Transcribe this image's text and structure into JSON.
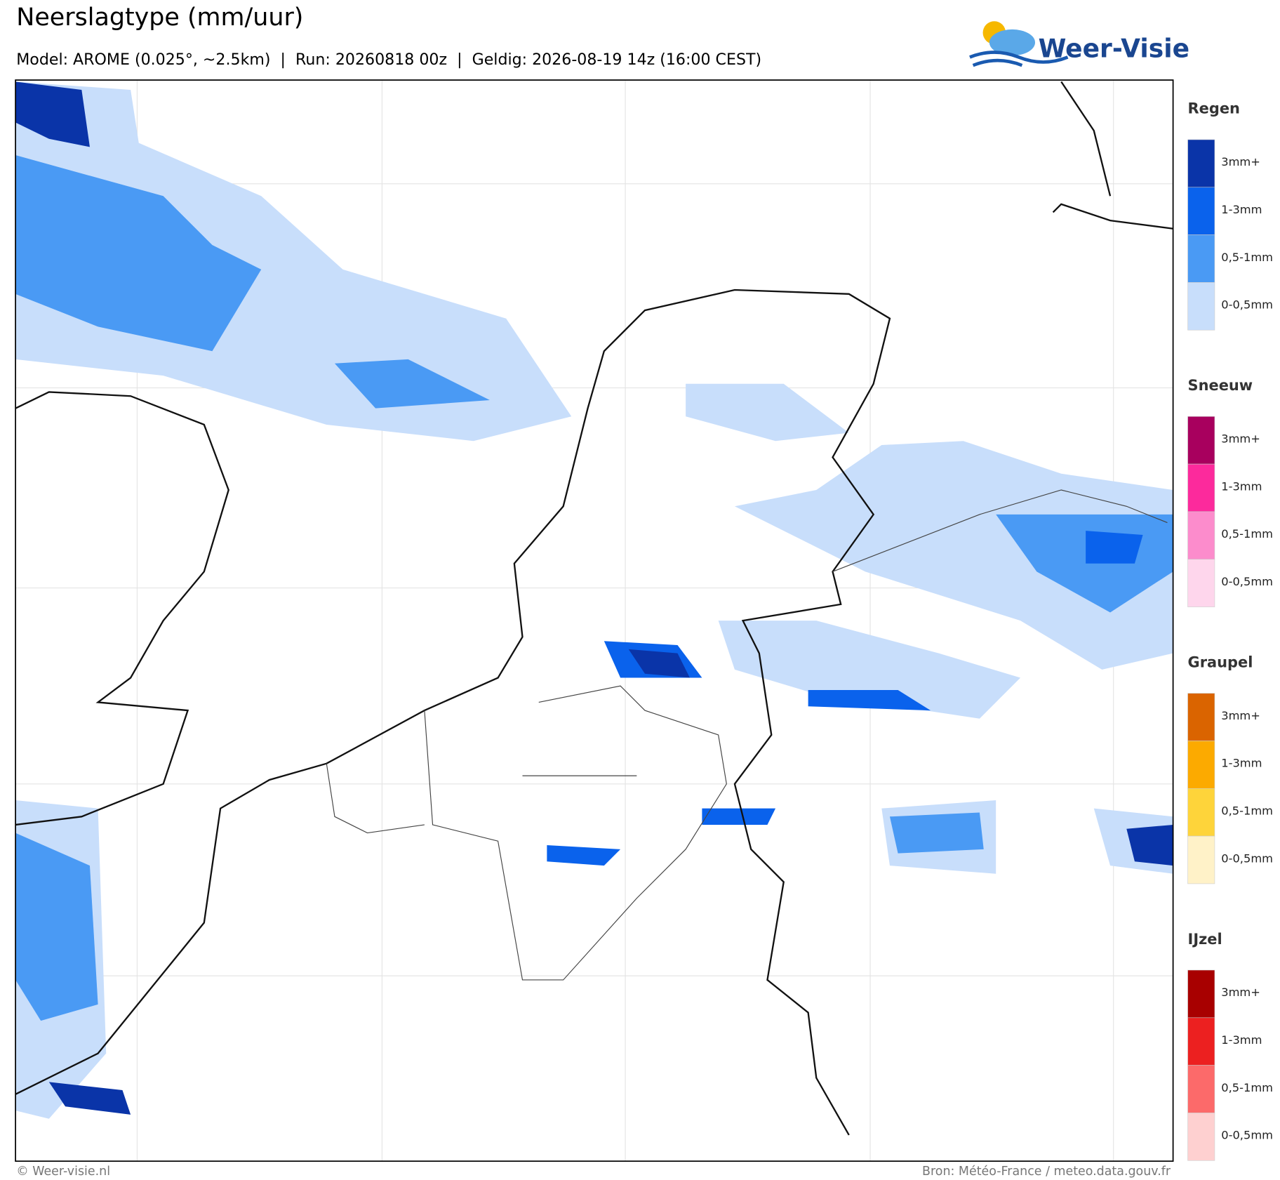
{
  "header": {
    "title": "Neerslagtype (mm/uur)",
    "subtitle": "Model: AROME (0.025°, ~2.5km)  |  Run: 20260818 00z  |  Geldig: 2026-08-19 14z (16:00 CEST)",
    "logo": "Weer-Visie"
  },
  "legend": {
    "groups": [
      {
        "title": "Regen",
        "items": [
          {
            "label": "3mm+",
            "color": "#0a34a8"
          },
          {
            "label": "1-3mm",
            "color": "#0a62ec"
          },
          {
            "label": "0,5-1mm",
            "color": "#4a9af4"
          },
          {
            "label": "0-0,5mm",
            "color": "#c8defb"
          }
        ]
      },
      {
        "title": "Sneeuw",
        "items": [
          {
            "label": "3mm+",
            "color": "#a8005e"
          },
          {
            "label": "1-3mm",
            "color": "#fc2a9c"
          },
          {
            "label": "0,5-1mm",
            "color": "#fc8ccc"
          },
          {
            "label": "0-0,5mm",
            "color": "#fed6ec"
          }
        ]
      },
      {
        "title": "Graupel",
        "items": [
          {
            "label": "3mm+",
            "color": "#da6400"
          },
          {
            "label": "1-3mm",
            "color": "#fcaa00"
          },
          {
            "label": "0,5-1mm",
            "color": "#fed43a"
          },
          {
            "label": "0-0,5mm",
            "color": "#fff2c8"
          }
        ]
      },
      {
        "title": "IJzel",
        "items": [
          {
            "label": "3mm+",
            "color": "#a80000"
          },
          {
            "label": "1-3mm",
            "color": "#ec2020"
          },
          {
            "label": "0,5-1mm",
            "color": "#fc6a6a"
          },
          {
            "label": "0-0,5mm",
            "color": "#fed0d0"
          }
        ]
      }
    ]
  },
  "footer": {
    "left": "© Weer-visie.nl",
    "right": "Bron: Météo-France / meteo.data.gouv.fr"
  }
}
